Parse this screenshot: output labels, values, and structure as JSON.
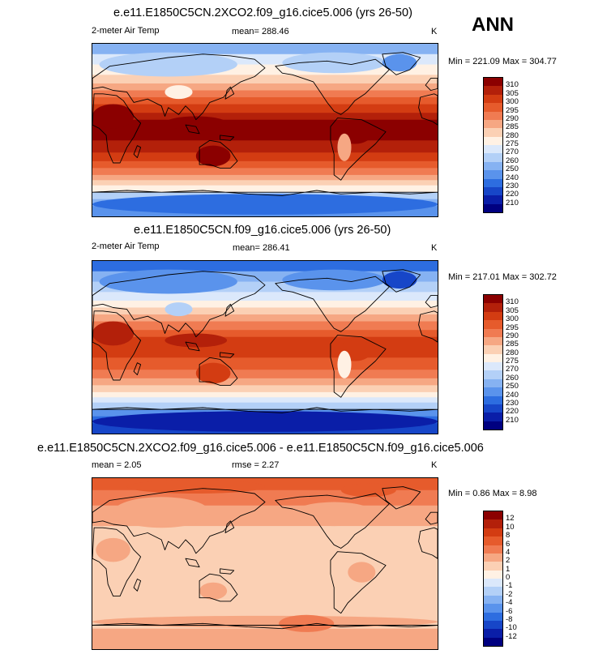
{
  "season": "ANN",
  "units": "K",
  "colors": {
    "abs": [
      "#000080",
      "#0a1ea8",
      "#1746c8",
      "#2d6de0",
      "#5a93ec",
      "#86b2f2",
      "#b3d0f7",
      "#dbe8fb",
      "#fff1e4",
      "#fbd0b4",
      "#f6a783",
      "#f07b52",
      "#e65b2c",
      "#d33c12",
      "#b3200a",
      "#8b0000"
    ],
    "diff": [
      "#000080",
      "#0a1ea8",
      "#1746c8",
      "#2d6de0",
      "#5a93ec",
      "#86b2f2",
      "#b3d0f7",
      "#dbe8fb",
      "#fff1e4",
      "#fbd0b4",
      "#f6a783",
      "#f07b52",
      "#e65b2c",
      "#d33c12",
      "#b3200a",
      "#8b0000"
    ]
  },
  "panels": [
    {
      "id": "test",
      "title": "e.e11.E1850C5CN.2XCO2.f09_g16.cice5.006 (yrs 26-50)",
      "variable": "2-meter Air Temp",
      "mean_label": "mean=",
      "mean_value": "288.46",
      "units": "K",
      "minmax": "Min = 221.09 Max = 304.77",
      "colorbar_labels": [
        "310",
        "305",
        "300",
        "295",
        "290",
        "285",
        "280",
        "275",
        "270",
        "260",
        "250",
        "240",
        "230",
        "220",
        "210"
      ],
      "shift": 2
    },
    {
      "id": "ctrl",
      "title": "e.e11.E1850C5CN.f09_g16.cice5.006 (yrs 26-50)",
      "variable": "2-meter Air Temp",
      "mean_label": "mean=",
      "mean_value": "286.41",
      "units": "K",
      "minmax": "Min = 217.01 Max = 302.72",
      "colorbar_labels": [
        "310",
        "305",
        "300",
        "295",
        "290",
        "285",
        "280",
        "275",
        "270",
        "260",
        "250",
        "240",
        "230",
        "220",
        "210"
      ],
      "shift": 0
    },
    {
      "id": "diff",
      "title": "e.e11.E1850C5CN.2XCO2.f09_g16.cice5.006 - e.e11.E1850C5CN.f09_g16.cice5.006",
      "mean_label": "mean =",
      "mean_value": "2.05",
      "rmse_label": "rmse =",
      "rmse_value": "2.27",
      "units": "K",
      "minmax": "Min =  0.86 Max =  8.98",
      "colorbar_labels": [
        "12",
        "10",
        "8",
        "6",
        "4",
        "2",
        "1",
        "0",
        "-1",
        "-2",
        "-4",
        "-6",
        "-8",
        "-10",
        "-12"
      ]
    }
  ],
  "chart_data": [
    {
      "type": "heatmap",
      "title": "e.e11.E1850C5CN.2XCO2.f09_g16.cice5.006 (yrs 26-50)",
      "variable": "2-meter Air Temp",
      "units": "K",
      "mean": 288.46,
      "min": 221.09,
      "max": 304.77,
      "contour_levels": [
        210,
        220,
        230,
        240,
        250,
        260,
        270,
        275,
        280,
        285,
        290,
        295,
        300,
        305,
        310
      ]
    },
    {
      "type": "heatmap",
      "title": "e.e11.E1850C5CN.f09_g16.cice5.006 (yrs 26-50)",
      "variable": "2-meter Air Temp",
      "units": "K",
      "mean": 286.41,
      "min": 217.01,
      "max": 302.72,
      "contour_levels": [
        210,
        220,
        230,
        240,
        250,
        260,
        270,
        275,
        280,
        285,
        290,
        295,
        300,
        305,
        310
      ]
    },
    {
      "type": "heatmap",
      "title": "e.e11.E1850C5CN.2XCO2.f09_g16.cice5.006 - e.e11.E1850C5CN.f09_g16.cice5.006",
      "units": "K",
      "mean": 2.05,
      "rmse": 2.27,
      "min": 0.86,
      "max": 8.98,
      "contour_levels": [
        -12,
        -10,
        -8,
        -6,
        -4,
        -2,
        -1,
        0,
        1,
        2,
        4,
        6,
        8,
        10,
        12
      ]
    }
  ]
}
